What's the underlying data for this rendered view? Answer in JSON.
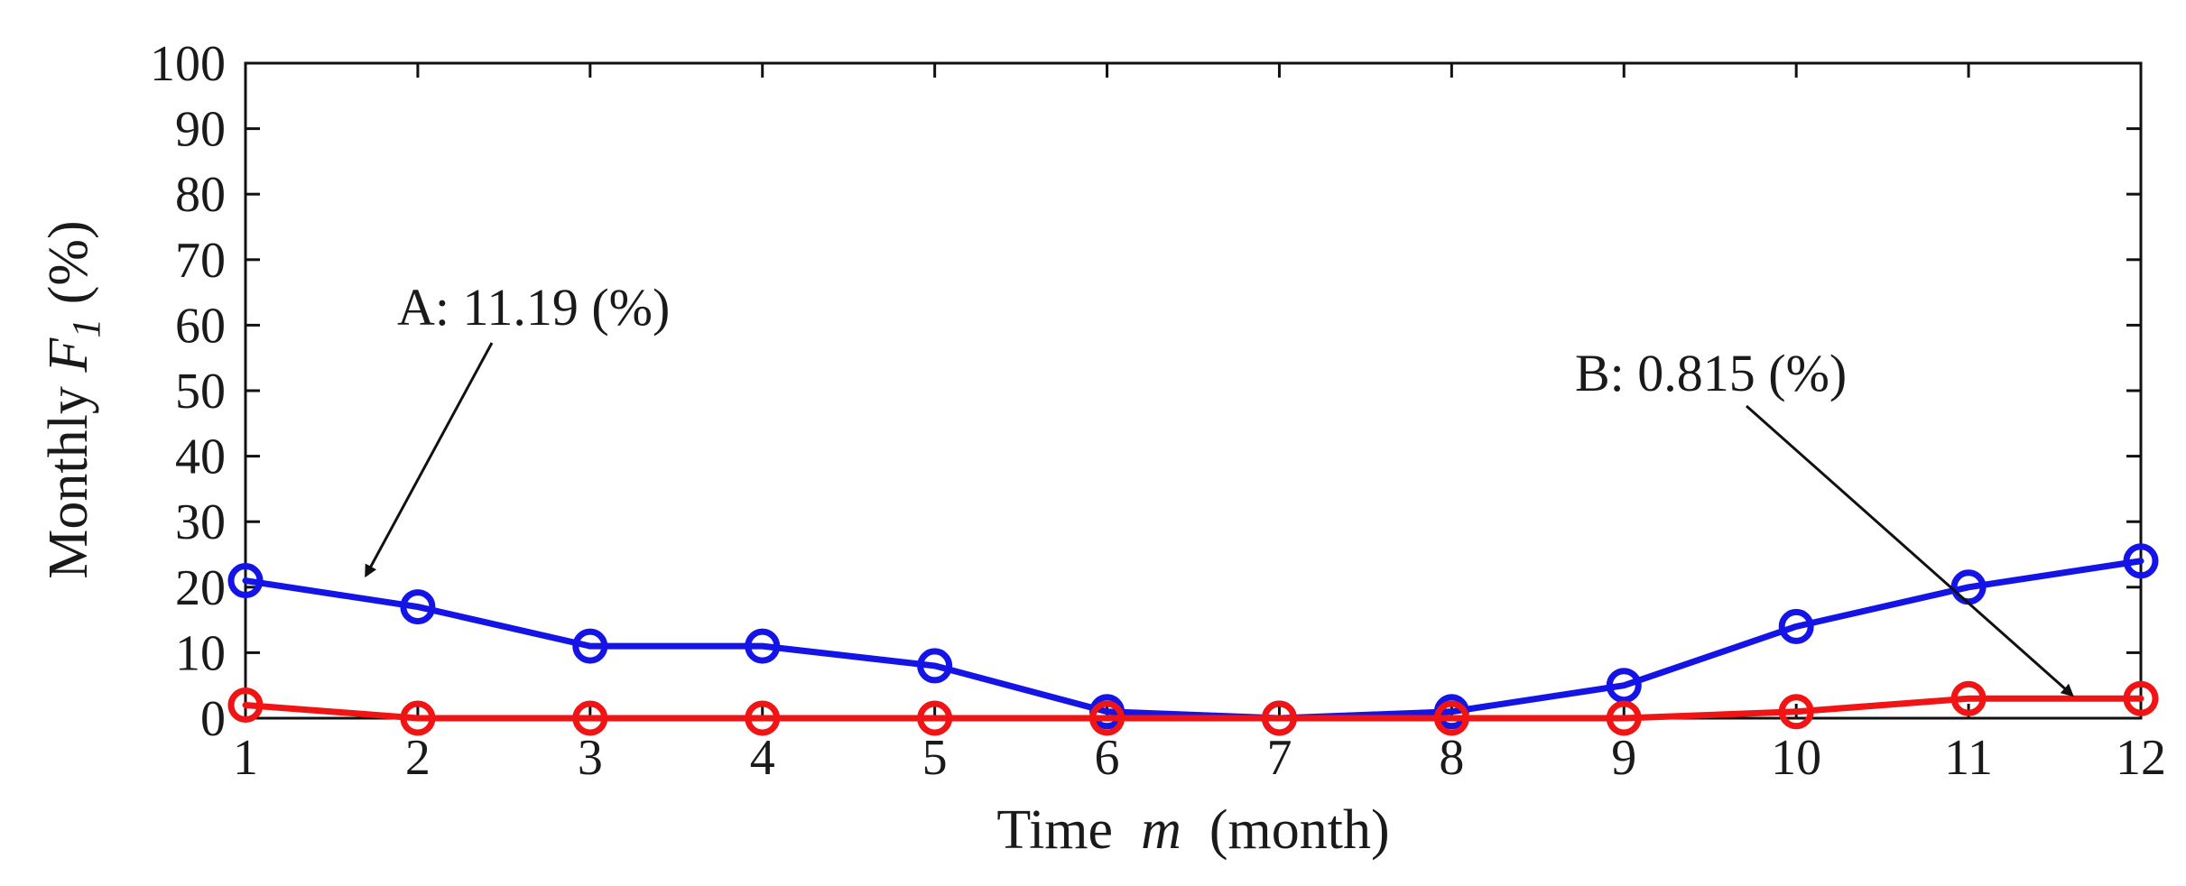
{
  "chart_data": {
    "type": "line",
    "xlabel": {
      "prefix": "Time",
      "var": "m",
      "suffix": "(month)"
    },
    "ylabel": {
      "prefix": "Monthly",
      "var": "F",
      "sub": "1",
      "suffix": "(%)"
    },
    "x": [
      1,
      2,
      3,
      4,
      5,
      6,
      7,
      8,
      9,
      10,
      11,
      12
    ],
    "xlim": [
      1,
      12
    ],
    "ylim": [
      0,
      100
    ],
    "xticks": [
      1,
      2,
      3,
      4,
      5,
      6,
      7,
      8,
      9,
      10,
      11,
      12
    ],
    "yticks": [
      0,
      10,
      20,
      30,
      40,
      50,
      60,
      70,
      80,
      90,
      100
    ],
    "grid": false,
    "series": [
      {
        "color": "#1414e6",
        "marker": "circle",
        "values": [
          21,
          17,
          11,
          11,
          8,
          1,
          0,
          1,
          5,
          14,
          20,
          24
        ]
      },
      {
        "color": "#f01414",
        "marker": "circle",
        "values": [
          2,
          0,
          0,
          0,
          0,
          0,
          0,
          0,
          0,
          1,
          3,
          3
        ]
      }
    ],
    "annotations": [
      {
        "text": "A: 11.19 (%)",
        "arrow_to_x": 1.7,
        "arrow_to_y": 21
      },
      {
        "text": "B: 0.815 (%)",
        "arrow_to_x": 11.6,
        "arrow_to_y": 3
      }
    ]
  }
}
